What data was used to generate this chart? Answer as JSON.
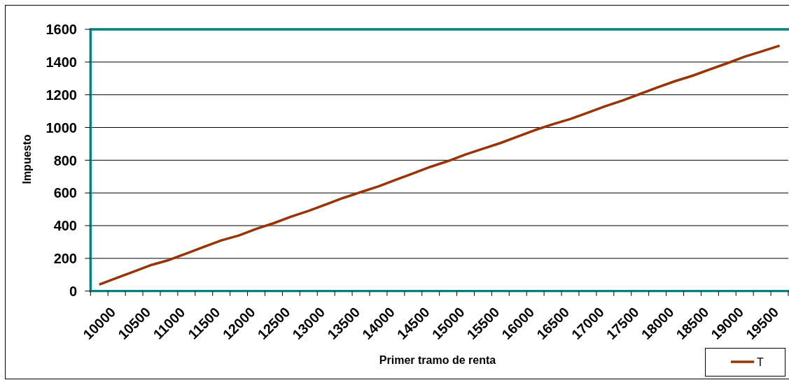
{
  "chart_data": {
    "type": "line",
    "xlabel": "Primer tramo de renta",
    "ylabel": "Impuesto",
    "categories": [
      "10000",
      null,
      "10500",
      null,
      "11000",
      null,
      "11500",
      null,
      "12000",
      null,
      "12500",
      null,
      "13000",
      null,
      "13500",
      null,
      "14000",
      null,
      "14500",
      null,
      "15000",
      null,
      "15500",
      null,
      "16000",
      null,
      "16500",
      null,
      "17000",
      null,
      "17500",
      null,
      "18000",
      null,
      "18500",
      null,
      "19000",
      null,
      "19500",
      null
    ],
    "series": [
      {
        "name": "T",
        "color": "#993300",
        "values": [
          40,
          80,
          120,
          160,
          190,
          230,
          270,
          310,
          340,
          380,
          415,
          455,
          490,
          530,
          570,
          605,
          640,
          680,
          720,
          760,
          795,
          835,
          870,
          905,
          945,
          985,
          1020,
          1052,
          1090,
          1130,
          1165,
          1205,
          1245,
          1283,
          1316,
          1355,
          1393,
          1433,
          1466,
          1500
        ]
      }
    ],
    "ylim": [
      0,
      1600
    ],
    "yticks": [
      0,
      200,
      400,
      600,
      800,
      1000,
      1200,
      1400,
      1600
    ],
    "grid": "y",
    "legend": "bottom right"
  }
}
